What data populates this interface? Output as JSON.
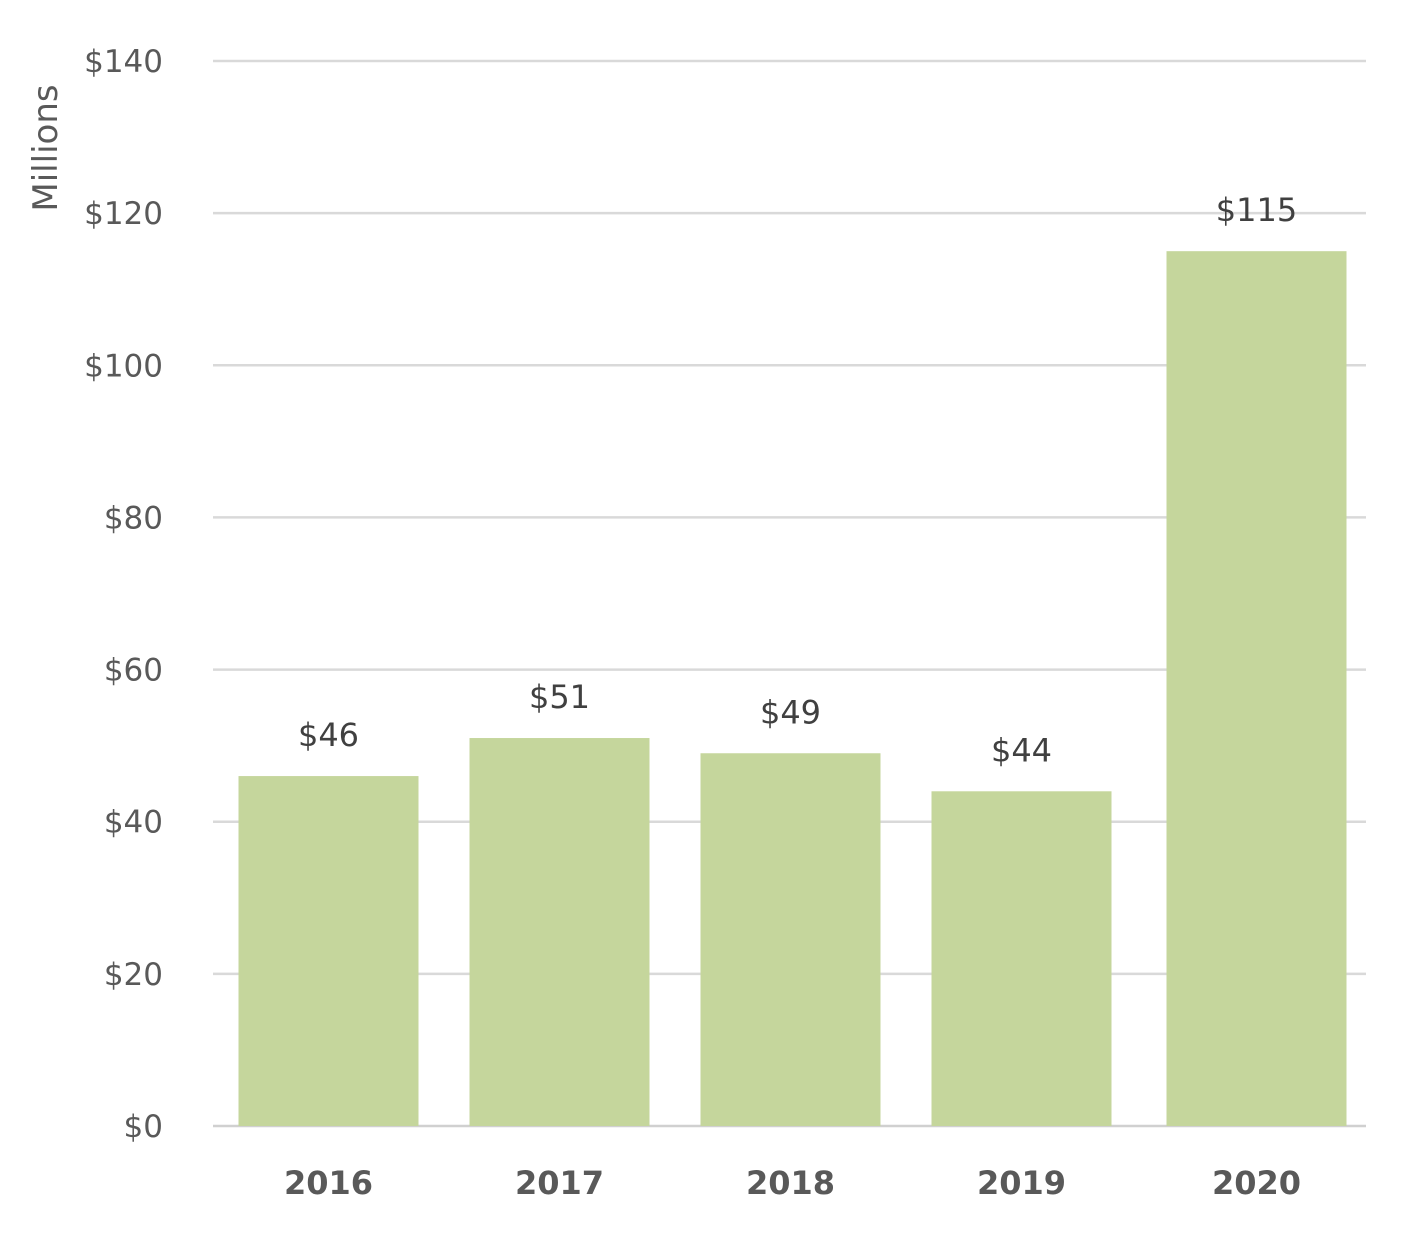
{
  "chart_data": {
    "type": "bar",
    "title": "",
    "xlabel": "",
    "ylabel": "Millions",
    "categories": [
      "2016",
      "2017",
      "2018",
      "2019",
      "2020"
    ],
    "values": [
      46,
      51,
      49,
      44,
      115
    ],
    "data_labels": [
      "$46",
      "$51",
      "$49",
      "$44",
      "$115"
    ],
    "ylim": [
      0,
      140
    ],
    "y_ticks": [
      0,
      20,
      40,
      60,
      80,
      100,
      120,
      140
    ],
    "y_tick_labels": [
      "$0",
      "$20",
      "$40",
      "$60",
      "$80",
      "$100",
      "$120",
      "$140"
    ],
    "grid": true,
    "legend": "none",
    "bar_color": "#c5d69c",
    "grid_color": "#d9d9d9",
    "text_color": "#595959"
  }
}
